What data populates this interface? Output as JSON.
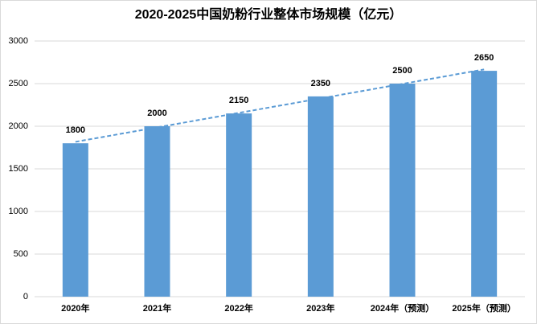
{
  "chart_data": {
    "type": "bar",
    "title": "2020-2025中国奶粉行业整体市场规模（亿元）",
    "categories": [
      "2020年",
      "2021年",
      "2022年",
      "2023年",
      "2024年（预测）",
      "2025年（预测）"
    ],
    "values": [
      1800,
      2000,
      2150,
      2350,
      2500,
      2650
    ],
    "color": "#5b9bd5",
    "ylim": [
      0,
      3000
    ],
    "yticks": [
      0,
      500,
      1000,
      1500,
      2000,
      2500,
      3000
    ],
    "grid": true,
    "trendline": true
  }
}
